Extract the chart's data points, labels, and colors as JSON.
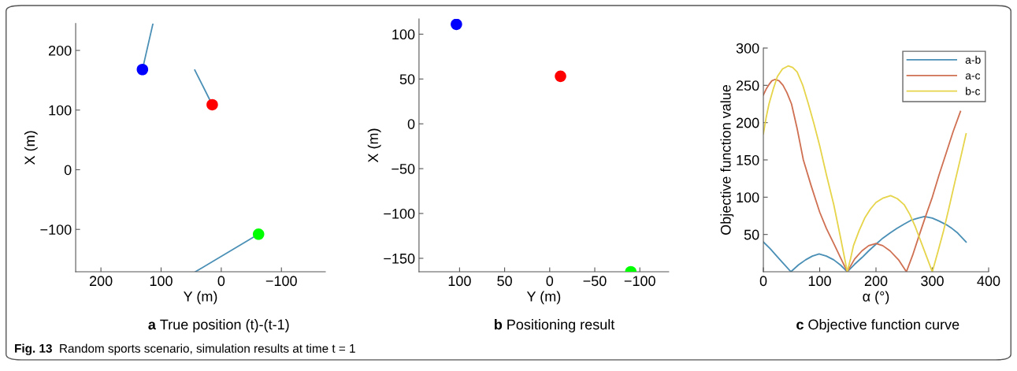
{
  "chart_data": [
    {
      "type": "scatter",
      "title": "a True position (t)-(t-1)",
      "xlabel": "Y (m)",
      "ylabel": "X (m)",
      "xlim": [
        242,
        -173
      ],
      "ylim": [
        -171,
        245
      ],
      "xticks": [
        200,
        100,
        0,
        -100
      ],
      "yticks": [
        -100,
        0,
        100,
        200
      ],
      "series": [
        {
          "type": "line",
          "color": "#4a8fb5",
          "x": [
            113.5,
            131
          ],
          "values": [
            245,
            168
          ],
          "marker": "none"
        },
        {
          "type": "line",
          "color": "#4a8fb5",
          "x": [
            44,
            15
          ],
          "values": [
            167,
            109
          ],
          "marker": "none"
        },
        {
          "type": "line",
          "color": "#4a8fb5",
          "x": [
            43,
            -62
          ],
          "values": [
            -171,
            -108
          ],
          "marker": "none"
        },
        {
          "type": "scatter",
          "x": [
            131,
            15,
            -62
          ],
          "values": [
            168,
            109,
            -108
          ],
          "colors": [
            "#0000ff",
            "#ff0000",
            "#00ff00"
          ],
          "marker": "circle"
        }
      ],
      "annotations": [
        "Fig. 13 Random sports scenario, simulation results at time t = 1"
      ],
      "grid": false
    },
    {
      "type": "scatter",
      "title": "b Positioning result",
      "xlabel": "Y (m)",
      "ylabel": "X (m)",
      "xlim": [
        145,
        -132
      ],
      "ylim": [
        -165,
        117
      ],
      "xticks": [
        100,
        50,
        0,
        -50,
        -100
      ],
      "yticks": [
        -150,
        -100,
        -50,
        0,
        50,
        100
      ],
      "series": [
        {
          "type": "scatter",
          "x": [
            103.5,
            -12,
            -90
          ],
          "values": [
            111,
            53,
            -165
          ],
          "colors": [
            "#0000ff",
            "#ff0000",
            "#00ff00"
          ]
        }
      ],
      "grid": false,
      "marker": "circle"
    },
    {
      "type": "line",
      "title": "c Objective function curve",
      "xlabel": "α (°)",
      "ylabel": "Objective function value",
      "xlim": [
        0,
        400
      ],
      "ylim": [
        0,
        300
      ],
      "xticks": [
        0,
        100,
        200,
        300,
        400
      ],
      "yticks": [
        50,
        100,
        150,
        200,
        250,
        300
      ],
      "series": [
        {
          "name": "a-b",
          "color": "#4a8fb5",
          "x": [
            0,
            12,
            25,
            37,
            49,
            62,
            75,
            87,
            99,
            112,
            125,
            137,
            149,
            162,
            175,
            187,
            200,
            212,
            225,
            237,
            250,
            262,
            275,
            286,
            300,
            312,
            325,
            335,
            345,
            360
          ],
          "values": [
            40,
            31,
            20,
            10,
            0,
            9,
            16,
            21,
            24,
            21,
            16,
            9,
            0,
            10,
            19,
            28,
            37,
            45,
            52,
            58,
            64,
            69,
            72,
            74,
            72,
            68,
            63,
            58,
            52,
            40
          ]
        },
        {
          "name": "a-c",
          "color": "#cf7052",
          "x": [
            0,
            5,
            10,
            15,
            21,
            28,
            35,
            42,
            50,
            60,
            71,
            85,
            100,
            112,
            125,
            137,
            149,
            162,
            175,
            187,
            200,
            212,
            225,
            240,
            254,
            265,
            275,
            287,
            300,
            312,
            325,
            337,
            350
          ],
          "values": [
            237,
            245,
            251,
            256,
            258,
            256,
            250,
            240,
            225,
            192,
            150,
            115,
            80,
            58,
            38,
            19,
            0,
            17,
            28,
            35,
            38,
            35,
            28,
            16,
            0,
            22,
            45,
            72,
            100,
            130,
            160,
            188,
            215
          ]
        },
        {
          "name": "b-c",
          "color": "#e6d44a",
          "x": [
            0,
            5,
            10,
            18,
            25,
            34,
            44,
            52,
            60,
            70,
            80,
            90,
            100,
            112,
            125,
            137,
            149,
            155,
            160,
            170,
            180,
            190,
            200,
            213,
            226,
            238,
            250,
            260,
            270,
            285,
            300,
            310,
            320,
            330,
            340,
            350,
            360
          ],
          "values": [
            185,
            207,
            225,
            246,
            262,
            272,
            276,
            274,
            268,
            250,
            225,
            198,
            169,
            130,
            90,
            46,
            0,
            18,
            35,
            55,
            72,
            84,
            93,
            99,
            102,
            98,
            90,
            77,
            60,
            30,
            0,
            27,
            55,
            87,
            120,
            152,
            185
          ]
        }
      ],
      "legend": "top right",
      "grid": false,
      "marker": "none",
      "line_style": "solid"
    }
  ]
}
